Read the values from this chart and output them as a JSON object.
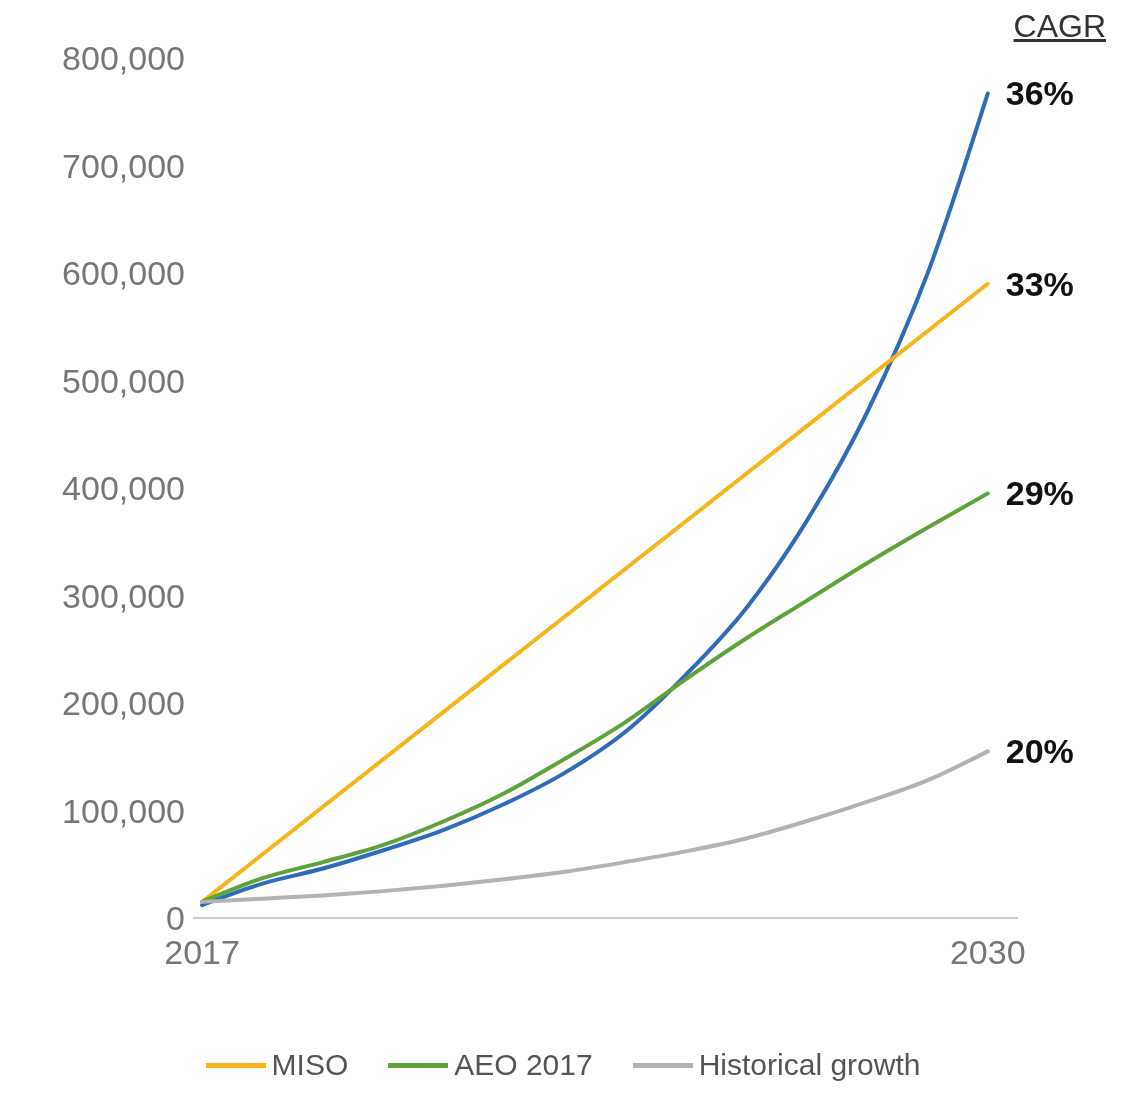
{
  "chart_data": {
    "type": "line",
    "x": [
      2017,
      2018,
      2019,
      2020,
      2021,
      2022,
      2023,
      2024,
      2025,
      2026,
      2027,
      2028,
      2029,
      2030
    ],
    "series": [
      {
        "color": "#2e6bb8",
        "values": [
          12000,
          32000,
          46000,
          63000,
          82000,
          106000,
          135000,
          173000,
          226000,
          288000,
          369000,
          470000,
          599000,
          767000
        ]
      },
      {
        "name": "MISO",
        "color": "#f5b51b",
        "x": [
          2017,
          2030
        ],
        "values": [
          15000,
          590000
        ]
      },
      {
        "name": "AEO 2017",
        "color": "#5ea33a",
        "values": [
          15000,
          37000,
          52000,
          68000,
          90000,
          116000,
          148000,
          182000,
          222000,
          260000,
          295000,
          330000,
          363000,
          395000
        ]
      },
      {
        "name": "Historical growth",
        "color": "#b3b3b3",
        "values": [
          15000,
          18000,
          21000,
          25000,
          30000,
          36000,
          43000,
          52000,
          62000,
          74000,
          90000,
          108000,
          128000,
          155000
        ]
      }
    ],
    "xlim": [
      2016.85,
      2030.5
    ],
    "xticks": [
      2017,
      2030
    ],
    "ylim": [
      0,
      800000
    ],
    "yticks": [
      0,
      {
        "value": 100000,
        "label": "100,000"
      },
      {
        "value": 200000,
        "label": "200,000"
      },
      {
        "value": 300000,
        "label": "300,000"
      },
      {
        "value": 400000,
        "label": "400,000"
      },
      {
        "value": 500000,
        "label": "500,000"
      },
      {
        "value": 600000,
        "label": "600,000"
      },
      {
        "value": 700000,
        "label": "700,000"
      },
      {
        "value": 800000,
        "label": "800,000"
      }
    ],
    "annotations": [
      "CAGR",
      "36%",
      "33%",
      "29%",
      "20%"
    ],
    "grid": false,
    "legend": "bottom",
    "marker": "none",
    "line_style": "solid"
  }
}
